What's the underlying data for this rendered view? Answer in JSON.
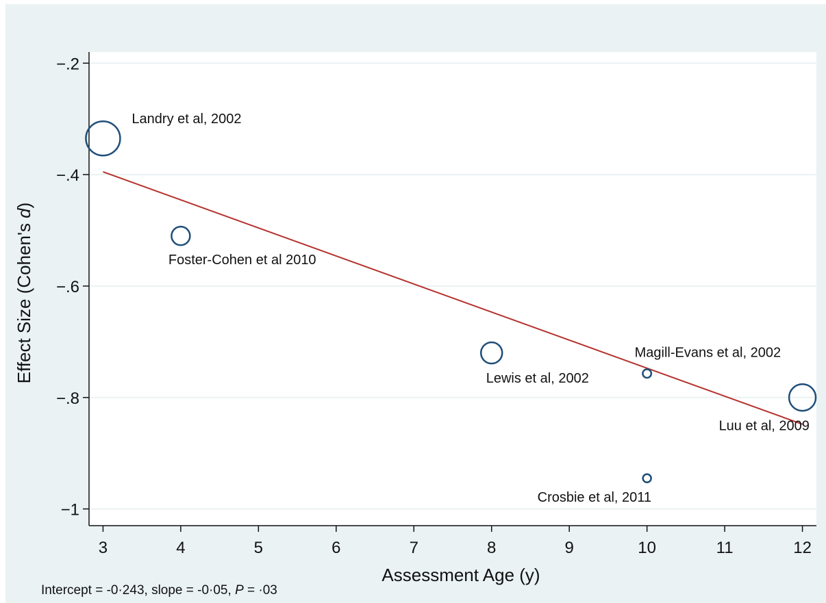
{
  "chart_data": {
    "type": "scatter",
    "title": "",
    "xlabel": "Assessment Age (y)",
    "ylabel_prefix": "Effect Size (Cohen's ",
    "ylabel_italic": "d",
    "ylabel_suffix": ")",
    "xlim": [
      2.82,
      12.18
    ],
    "ylim": [
      -1.03,
      -0.18
    ],
    "x_ticks": [
      {
        "v": 3,
        "label": "3"
      },
      {
        "v": 4,
        "label": "4"
      },
      {
        "v": 5,
        "label": "5"
      },
      {
        "v": 6,
        "label": "6"
      },
      {
        "v": 7,
        "label": "7"
      },
      {
        "v": 8,
        "label": "8"
      },
      {
        "v": 9,
        "label": "9"
      },
      {
        "v": 10,
        "label": "10"
      },
      {
        "v": 11,
        "label": "11"
      },
      {
        "v": 12,
        "label": "12"
      }
    ],
    "y_ticks": [
      {
        "v": -0.2,
        "label": "−.2"
      },
      {
        "v": -0.4,
        "label": "−.4"
      },
      {
        "v": -0.6,
        "label": "−.6"
      },
      {
        "v": -0.8,
        "label": "−.8"
      },
      {
        "v": -1.0,
        "label": "−1"
      }
    ],
    "grid": true,
    "points": [
      {
        "label": "Landry et al, 2002",
        "x": 3,
        "y": -0.335,
        "weight": 1.0,
        "label_pos": "above-right"
      },
      {
        "label": "Foster-Cohen et al 2010",
        "x": 4,
        "y": -0.51,
        "weight": 0.54,
        "label_pos": "below"
      },
      {
        "label": "Lewis et al, 2002",
        "x": 8,
        "y": -0.72,
        "weight": 0.62,
        "label_pos": "below"
      },
      {
        "label": "Magill-Evans et al, 2002",
        "x": 10,
        "y": -0.757,
        "weight": 0.25,
        "label_pos": "above"
      },
      {
        "label": "Crosbie et al, 2011",
        "x": 10,
        "y": -0.945,
        "weight": 0.19,
        "label_pos": "below"
      },
      {
        "label": "Luu et al, 2009",
        "x": 12,
        "y": -0.8,
        "weight": 0.78,
        "label_pos": "below"
      }
    ],
    "regression": {
      "x": [
        3,
        12
      ],
      "y": [
        -0.395,
        -0.848
      ],
      "color": "#b5322e"
    },
    "marker_color": "#1f4e79",
    "background": "#eaf2f3",
    "plot_background": "#ffffff"
  },
  "note": {
    "prefix": "Intercept =  -0·243, slope = -0·05, ",
    "p_italic": "P",
    "suffix": " = ·03"
  }
}
